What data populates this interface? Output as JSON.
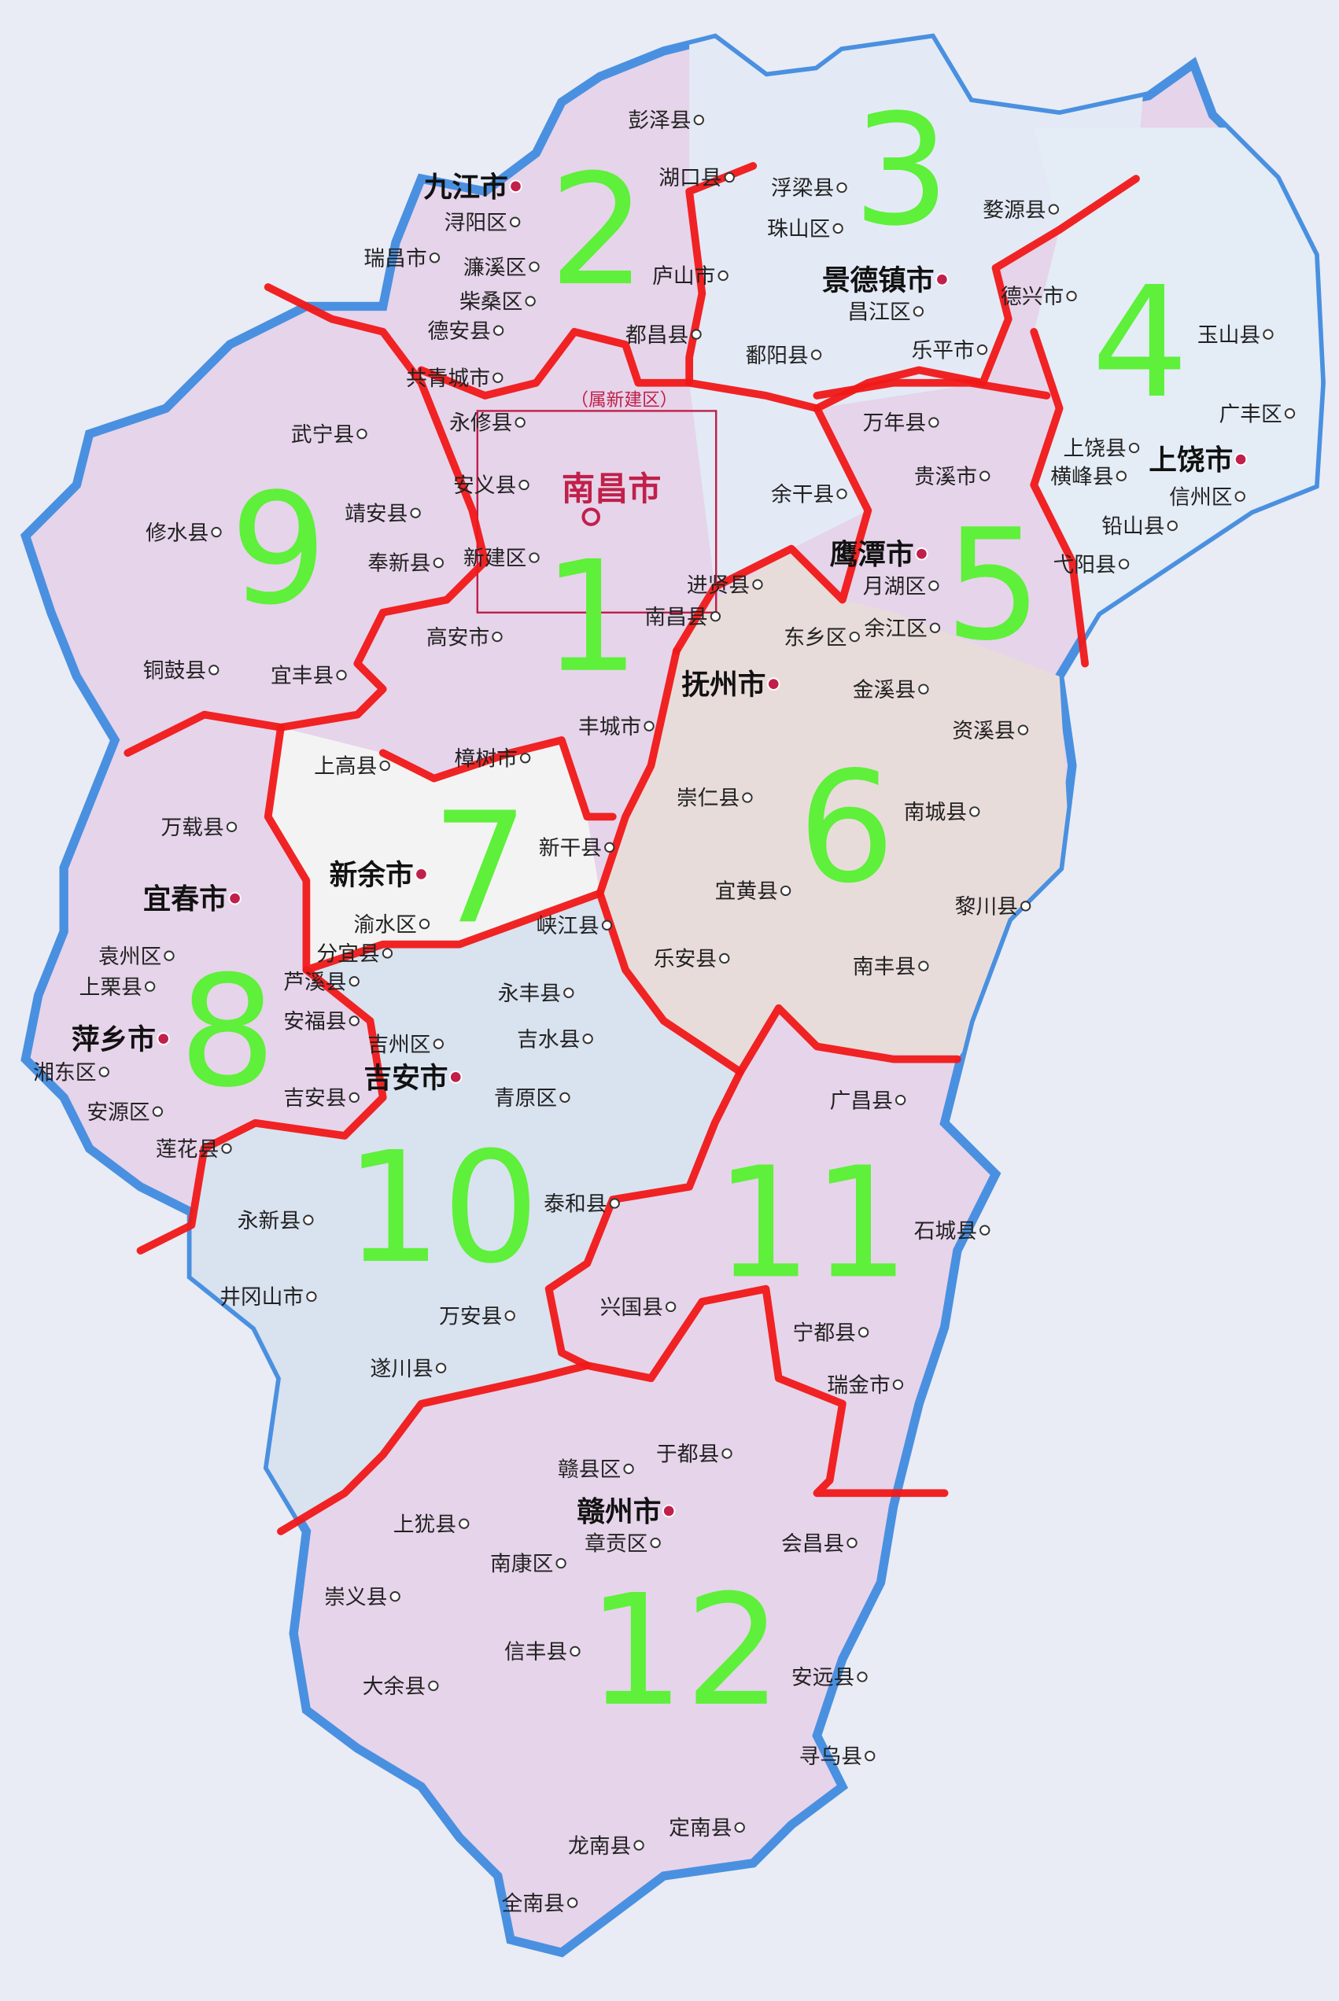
{
  "map": {
    "colors": {
      "boundary": "#f01818",
      "numbers": "#5ef03a",
      "border": "#4a90e0",
      "capital": "#c0204a"
    },
    "capital": "南昌市",
    "capital_note": "（属新建区）",
    "cities": [
      "九江市",
      "景德镇市",
      "上饶市",
      "鹰潭市",
      "抚州市",
      "新余市",
      "宜春市",
      "萍乡市",
      "吉安市",
      "赣州市"
    ],
    "counties": [
      "彭泽县",
      "湖口县",
      "浔阳区",
      "濂溪区",
      "瑞昌市",
      "柴桑区",
      "庐山市",
      "都昌县",
      "德安县",
      "共青城市",
      "浮梁县",
      "婺源县",
      "珠山区",
      "昌江区",
      "德兴市",
      "乐平市",
      "鄱阳县",
      "玉山县",
      "广丰区",
      "上饶县",
      "信州区",
      "横峰县",
      "铅山县",
      "弋阳县",
      "万年县",
      "余干县",
      "贵溪市",
      "月湖区",
      "余江区",
      "东乡区",
      "进贤县",
      "南昌县",
      "新建区",
      "永修县",
      "安义县",
      "靖安县",
      "奉新县",
      "武宁县",
      "修水县",
      "铜鼓县",
      "宜丰县",
      "高安市",
      "丰城市",
      "上高县",
      "樟树市",
      "万载县",
      "新干县",
      "渝水区",
      "分宜县",
      "峡江县",
      "袁州区",
      "上栗县",
      "芦溪县",
      "湘东区",
      "安源区",
      "安福县",
      "永丰县",
      "吉水县",
      "吉州区",
      "青原区",
      "吉安县",
      "莲花县",
      "泰和县",
      "永新县",
      "井冈山市",
      "万安县",
      "遂川县",
      "金溪县",
      "资溪县",
      "崇仁县",
      "南城县",
      "宜黄县",
      "黎川县",
      "乐安县",
      "南丰县",
      "广昌县",
      "宁都县",
      "石城县",
      "兴国县",
      "瑞金市",
      "于都县",
      "赣县区",
      "章贡区",
      "会昌县",
      "上犹县",
      "南康区",
      "崇义县",
      "信丰县",
      "安远县",
      "大余县",
      "寻乌县",
      "龙南县",
      "定南县",
      "全南县"
    ],
    "region_numbers": [
      "1",
      "2",
      "3",
      "4",
      "5",
      "6",
      "7",
      "8",
      "9",
      "10",
      "11",
      "12"
    ]
  }
}
